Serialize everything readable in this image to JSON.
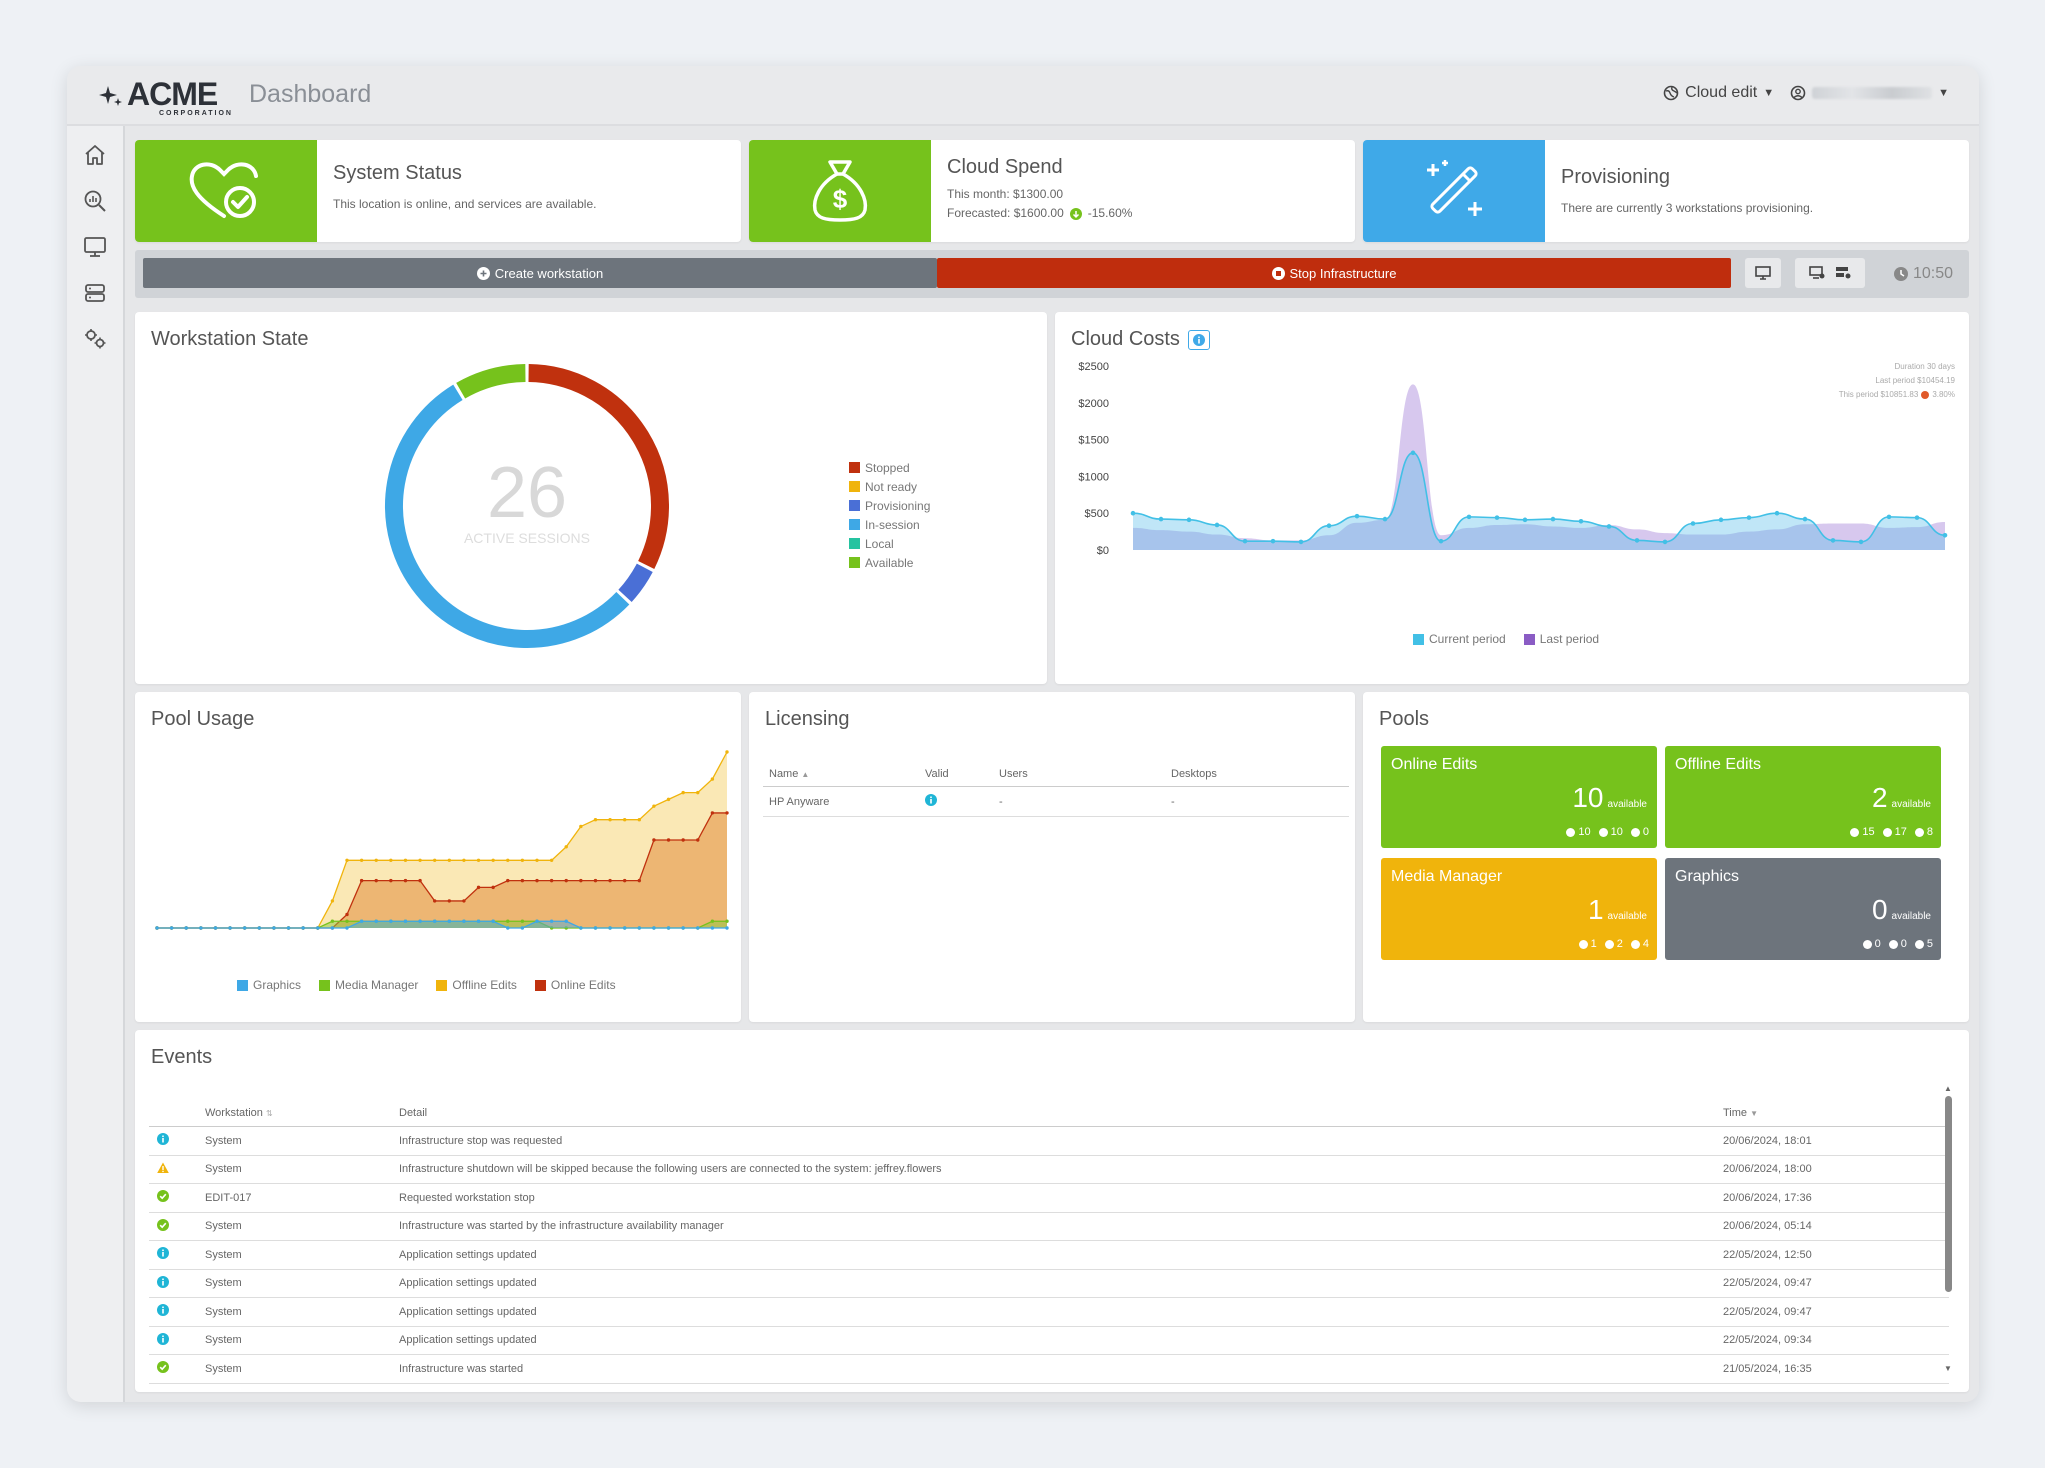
{
  "header": {
    "logo_text": "ACME",
    "logo_sub": "CORPORATION",
    "title": "Dashboard",
    "cloud_label": "Cloud edit"
  },
  "sidebar": {
    "items": [
      {
        "icon": "home-icon"
      },
      {
        "icon": "analytics-search-icon"
      },
      {
        "icon": "monitor-icon"
      },
      {
        "icon": "server-icon"
      },
      {
        "icon": "settings-gears-icon"
      }
    ]
  },
  "status_cards": {
    "system": {
      "title": "System Status",
      "text": "This location is online, and services are available.",
      "color": "#76c21c"
    },
    "spend": {
      "title": "Cloud Spend",
      "this_month": "This month: $1300.00",
      "forecast": "Forecasted: $1600.00",
      "change": "-15.60%",
      "color": "#76c21c"
    },
    "provisioning": {
      "title": "Provisioning",
      "text": "There are currently 3 workstations provisioning.",
      "color": "#3fa9e8"
    }
  },
  "actions": {
    "create": "Create workstation",
    "stop": "Stop Infrastructure",
    "time": "10:50"
  },
  "workstation_state": {
    "title": "Workstation State",
    "count": "26",
    "count_label": "ACTIVE SESSIONS",
    "legend": [
      {
        "label": "Stopped",
        "color": "#c0310e"
      },
      {
        "label": "Not ready",
        "color": "#f0b40c"
      },
      {
        "label": "Provisioning",
        "color": "#4a6fd6"
      },
      {
        "label": "In-session",
        "color": "#3ea8e6"
      },
      {
        "label": "Local",
        "color": "#25c3a0"
      },
      {
        "label": "Available",
        "color": "#76c21c"
      }
    ]
  },
  "cloud_costs": {
    "title": "Cloud Costs",
    "info_duration": "Duration   30 days",
    "info_last": "Last period   $10454.19",
    "info_this": "This period   $10851.83",
    "info_change": "3.80%",
    "y_ticks": [
      "$2500",
      "$2000",
      "$1500",
      "$1000",
      "$500",
      "$0"
    ],
    "legend_current": "Current period",
    "legend_last": "Last period"
  },
  "pool_usage": {
    "title": "Pool Usage",
    "legend": [
      {
        "label": "Graphics",
        "color": "#3ea8e6"
      },
      {
        "label": "Media Manager",
        "color": "#76c21c"
      },
      {
        "label": "Offline Edits",
        "color": "#f0b40c"
      },
      {
        "label": "Online Edits",
        "color": "#c0310e"
      }
    ]
  },
  "licensing": {
    "title": "Licensing",
    "headers": {
      "name": "Name",
      "valid": "Valid",
      "users": "Users",
      "desktops": "Desktops"
    },
    "rows": [
      {
        "name": "HP Anyware",
        "users": "-",
        "desktops": "-"
      }
    ]
  },
  "pools": {
    "title": "Pools",
    "tiles": [
      {
        "name": "Online Edits",
        "count": "10",
        "avail": "available",
        "s1": "10",
        "s2": "10",
        "s3": "0",
        "color": "#76c21c"
      },
      {
        "name": "Offline Edits",
        "count": "2",
        "avail": "available",
        "s1": "15",
        "s2": "17",
        "s3": "8",
        "color": "#76c21c"
      },
      {
        "name": "Media Manager",
        "count": "1",
        "avail": "available",
        "s1": "1",
        "s2": "2",
        "s3": "4",
        "color": "#f0b40c"
      },
      {
        "name": "Graphics",
        "count": "0",
        "avail": "available",
        "s1": "0",
        "s2": "0",
        "s3": "5",
        "color": "#6d747c"
      }
    ]
  },
  "events": {
    "title": "Events",
    "headers": {
      "workstation": "Workstation",
      "detail": "Detail",
      "time": "Time"
    },
    "rows": [
      {
        "type": "info",
        "ws": "System",
        "detail": "Infrastructure stop was requested",
        "time": "20/06/2024, 18:01"
      },
      {
        "type": "warn",
        "ws": "System",
        "detail": "Infrastructure shutdown will be skipped because the following users are connected to the system: jeffrey.flowers",
        "time": "20/06/2024, 18:00"
      },
      {
        "type": "ok",
        "ws": "EDIT-017",
        "detail": "Requested workstation stop",
        "time": "20/06/2024, 17:36"
      },
      {
        "type": "ok",
        "ws": "System",
        "detail": "Infrastructure was started by the infrastructure availability manager",
        "time": "20/06/2024, 05:14"
      },
      {
        "type": "info",
        "ws": "System",
        "detail": "Application settings updated",
        "time": "22/05/2024, 12:50"
      },
      {
        "type": "info",
        "ws": "System",
        "detail": "Application settings updated",
        "time": "22/05/2024, 09:47"
      },
      {
        "type": "info",
        "ws": "System",
        "detail": "Application settings updated",
        "time": "22/05/2024, 09:47"
      },
      {
        "type": "info",
        "ws": "System",
        "detail": "Application settings updated",
        "time": "22/05/2024, 09:34"
      },
      {
        "type": "ok",
        "ws": "System",
        "detail": "Infrastructure was started",
        "time": "21/05/2024, 16:35"
      }
    ]
  }
}
